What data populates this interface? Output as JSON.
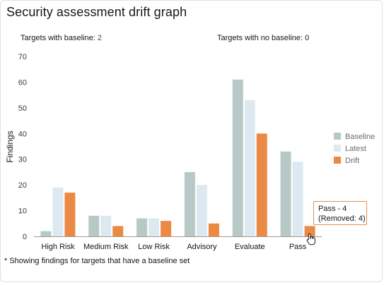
{
  "title": "Security assessment drift graph",
  "summary": {
    "baseline_label": "Targets with baseline:",
    "baseline_value": "2",
    "no_baseline_label": "Targets with no baseline:",
    "no_baseline_value": "0"
  },
  "footnote": "* Showing findings for targets that have a baseline set",
  "tooltip": {
    "line1": "Pass - 4",
    "line2": "(Removed: 4)"
  },
  "colors": {
    "baseline": "#b7c9c6",
    "latest": "#dde9f0",
    "drift": "#ea8a45"
  },
  "chart_data": {
    "type": "bar",
    "categories": [
      "High Risk",
      "Medium Risk",
      "Low Risk",
      "Advisory",
      "Evaluate",
      "Pass"
    ],
    "series": [
      {
        "name": "Baseline",
        "values": [
          2,
          8,
          7,
          25,
          61,
          33
        ]
      },
      {
        "name": "Latest",
        "values": [
          19,
          8,
          7,
          20,
          53,
          29
        ]
      },
      {
        "name": "Drift",
        "values": [
          17,
          4,
          6,
          5,
          40,
          4
        ]
      }
    ],
    "ylabel": "Findings",
    "xlabel": "",
    "ylim": [
      0,
      70
    ],
    "yticks": [
      0,
      10,
      20,
      30,
      40,
      50,
      60,
      70
    ],
    "legend_position": "right",
    "grid": false
  }
}
